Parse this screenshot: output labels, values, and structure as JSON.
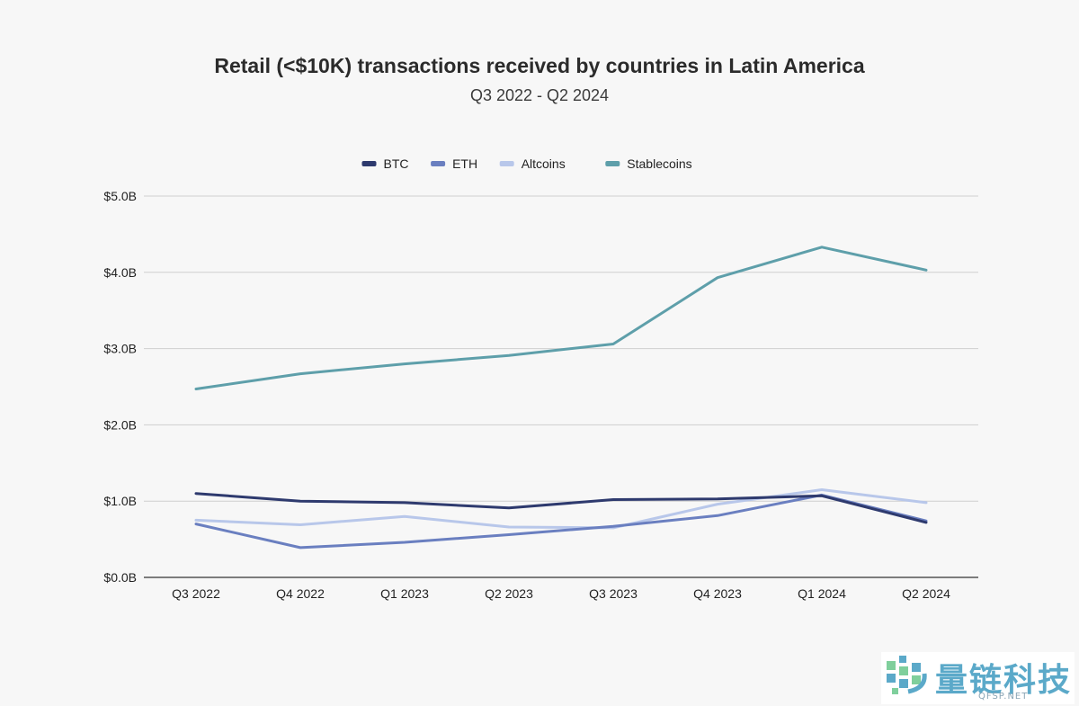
{
  "chart_data": {
    "type": "line",
    "title": "Retail (<$10K) transactions received by countries in Latin America",
    "subtitle": "Q3 2022 - Q2 2024",
    "xlabel": "",
    "ylabel": "",
    "categories": [
      "Q3 2022",
      "Q4 2022",
      "Q1 2023",
      "Q2 2023",
      "Q3 2023",
      "Q4 2023",
      "Q1 2024",
      "Q2 2024"
    ],
    "ylim": [
      0,
      5
    ],
    "yticks": [
      {
        "value": 0,
        "label": "$0.0B"
      },
      {
        "value": 1,
        "label": "$1.0B"
      },
      {
        "value": 2,
        "label": "$2.0B"
      },
      {
        "value": 3,
        "label": "$3.0B"
      },
      {
        "value": 4,
        "label": "$4.0B"
      },
      {
        "value": 5,
        "label": "$5.0B"
      }
    ],
    "grid": true,
    "legend_position": "top-center",
    "series": [
      {
        "name": "BTC",
        "color": "#2e3a6e",
        "values": [
          1.1,
          1.0,
          0.98,
          0.91,
          1.02,
          1.03,
          1.07,
          0.72
        ]
      },
      {
        "name": "ETH",
        "color": "#6a7fc0",
        "values": [
          0.7,
          0.39,
          0.46,
          0.56,
          0.67,
          0.81,
          1.08,
          0.74
        ]
      },
      {
        "name": "Altcoins",
        "color": "#b8c7ea",
        "values": [
          0.75,
          0.69,
          0.8,
          0.66,
          0.65,
          0.96,
          1.15,
          0.98
        ]
      },
      {
        "name": "Stablecoins",
        "color": "#5e9faa",
        "values": [
          2.47,
          2.67,
          2.8,
          2.91,
          3.06,
          3.93,
          4.33,
          4.03
        ]
      }
    ]
  },
  "watermark": {
    "text": "量链科技",
    "sub": "QFSP.NET"
  }
}
